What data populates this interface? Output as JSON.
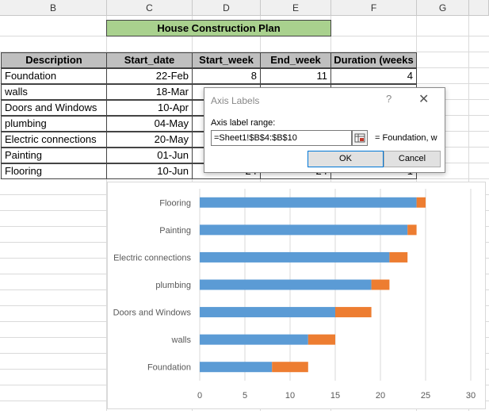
{
  "columns": [
    "B",
    "C",
    "D",
    "E",
    "F",
    "G"
  ],
  "title": "House Construction Plan",
  "table": {
    "headers": [
      "Description",
      "Start_date",
      "Start_week",
      "End_week",
      "Duration (weeks"
    ],
    "rows": [
      [
        "Foundation",
        "22-Feb",
        "8",
        "11",
        "4"
      ],
      [
        "walls",
        "18-Mar",
        "",
        "",
        ""
      ],
      [
        "Doors and Windows",
        "10-Apr",
        "",
        "",
        ""
      ],
      [
        "plumbing",
        "04-May",
        "",
        "",
        ""
      ],
      [
        "Electric connections",
        "20-May",
        "",
        "",
        ""
      ],
      [
        "Painting",
        "01-Jun",
        "",
        "",
        ""
      ],
      [
        "Flooring",
        "10-Jun",
        "24",
        "24",
        "1"
      ]
    ]
  },
  "dialog": {
    "title": "Axis Labels",
    "help": "?",
    "close": "✕",
    "label": "Axis label range:",
    "input_value": "=Sheet1!$B$4:$B$10",
    "preview": "= Foundation, w",
    "ok": "OK",
    "cancel": "Cancel"
  },
  "chart_data": {
    "type": "bar",
    "orientation": "horizontal",
    "stacked": true,
    "categories": [
      "Foundation",
      "walls",
      "Doors and Windows",
      "plumbing",
      "Electric connections",
      "Painting",
      "Flooring"
    ],
    "series": [
      {
        "values": [
          8,
          12,
          15,
          19,
          21,
          23,
          24
        ],
        "color": "#5b9bd5"
      },
      {
        "values": [
          4,
          3,
          4,
          2,
          2,
          1,
          1
        ],
        "color": "#ed7d31"
      }
    ],
    "xlim": [
      0,
      30
    ],
    "xticks": [
      "0",
      "5",
      "10",
      "15",
      "20",
      "25",
      "30"
    ],
    "grid": true
  }
}
